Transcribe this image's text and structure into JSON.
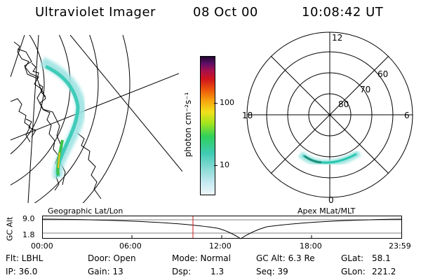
{
  "header": {
    "instrument": "Ultraviolet Imager",
    "date": "08 Oct 00",
    "time": "10:08:42 UT"
  },
  "left_panel": {
    "label": "Geographic Lat/Lon"
  },
  "right_panel": {
    "label": "Apex MLat/MLT",
    "mlt_labels": {
      "top": "12",
      "left": "18",
      "right": "6",
      "bottom": "0"
    },
    "lat_labels": [
      "60",
      "70",
      "80"
    ]
  },
  "colorbar": {
    "unit_label": "photon cm⁻²s⁻¹",
    "ticks": [
      "100",
      "10"
    ],
    "scale": "log",
    "colors": [
      "#d8ecf4",
      "#7fd7d4",
      "#2cc7b0",
      "#33d153",
      "#9ee31b",
      "#f0e01b",
      "#f6a30e",
      "#ee5b0a",
      "#d8141a",
      "#b0114a",
      "#6e0f66",
      "#2a0a3c"
    ]
  },
  "gc_alt_plot": {
    "ylabel": "GC Alt",
    "yticks": [
      "9.0",
      "1.8"
    ],
    "xticks": [
      "00:00",
      "06:00",
      "12:00",
      "18:00",
      "23:59"
    ],
    "current_time_marker": "10:08",
    "marker_color": "#cc2222"
  },
  "info": {
    "flt": "Flt: LBHL",
    "ip": "IP: 36.0",
    "door": "Door: Open",
    "gain": "Gain: 13",
    "mode": "Mode: Normal",
    "dsp_label": "Dsp:",
    "dsp_value": "1.3",
    "gc_alt": "GC Alt: 6.3 Re",
    "seq": "Seq: 39",
    "glat_label": "GLat:",
    "glat_value": "58.1",
    "glon_label": "GLon:",
    "glon_value": "221.2"
  }
}
